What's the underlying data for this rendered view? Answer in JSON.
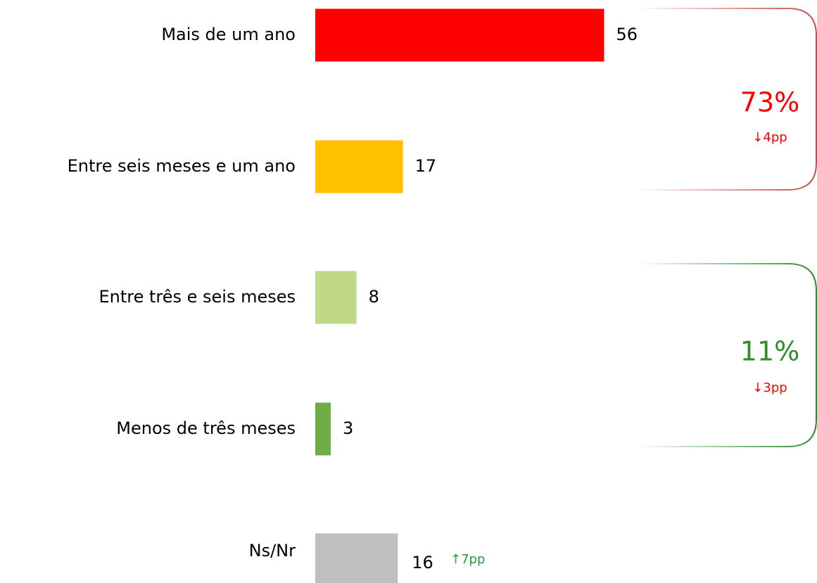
{
  "chart_data": {
    "type": "bar",
    "orientation": "horizontal",
    "categories": [
      "Mais de um ano",
      "Entre seis meses e um ano",
      "Entre três e seis meses",
      "Menos de três meses",
      "Ns/Nr"
    ],
    "values": [
      56,
      17,
      8,
      3,
      16
    ],
    "colors": [
      "#ff0000",
      "#ffc000",
      "#c0d986",
      "#70ad47",
      "#bfbfbf"
    ],
    "annotations": [
      {
        "text": "73%",
        "color": "#ff0000",
        "change": "↓4pp",
        "change_color": "#ff0000"
      },
      {
        "text": "11%",
        "color": "#2e8b2e",
        "change": "↓3pp",
        "change_color": "#ff0000"
      },
      {
        "change": "↑7pp",
        "change_color": "#2e9b2e"
      }
    ]
  }
}
